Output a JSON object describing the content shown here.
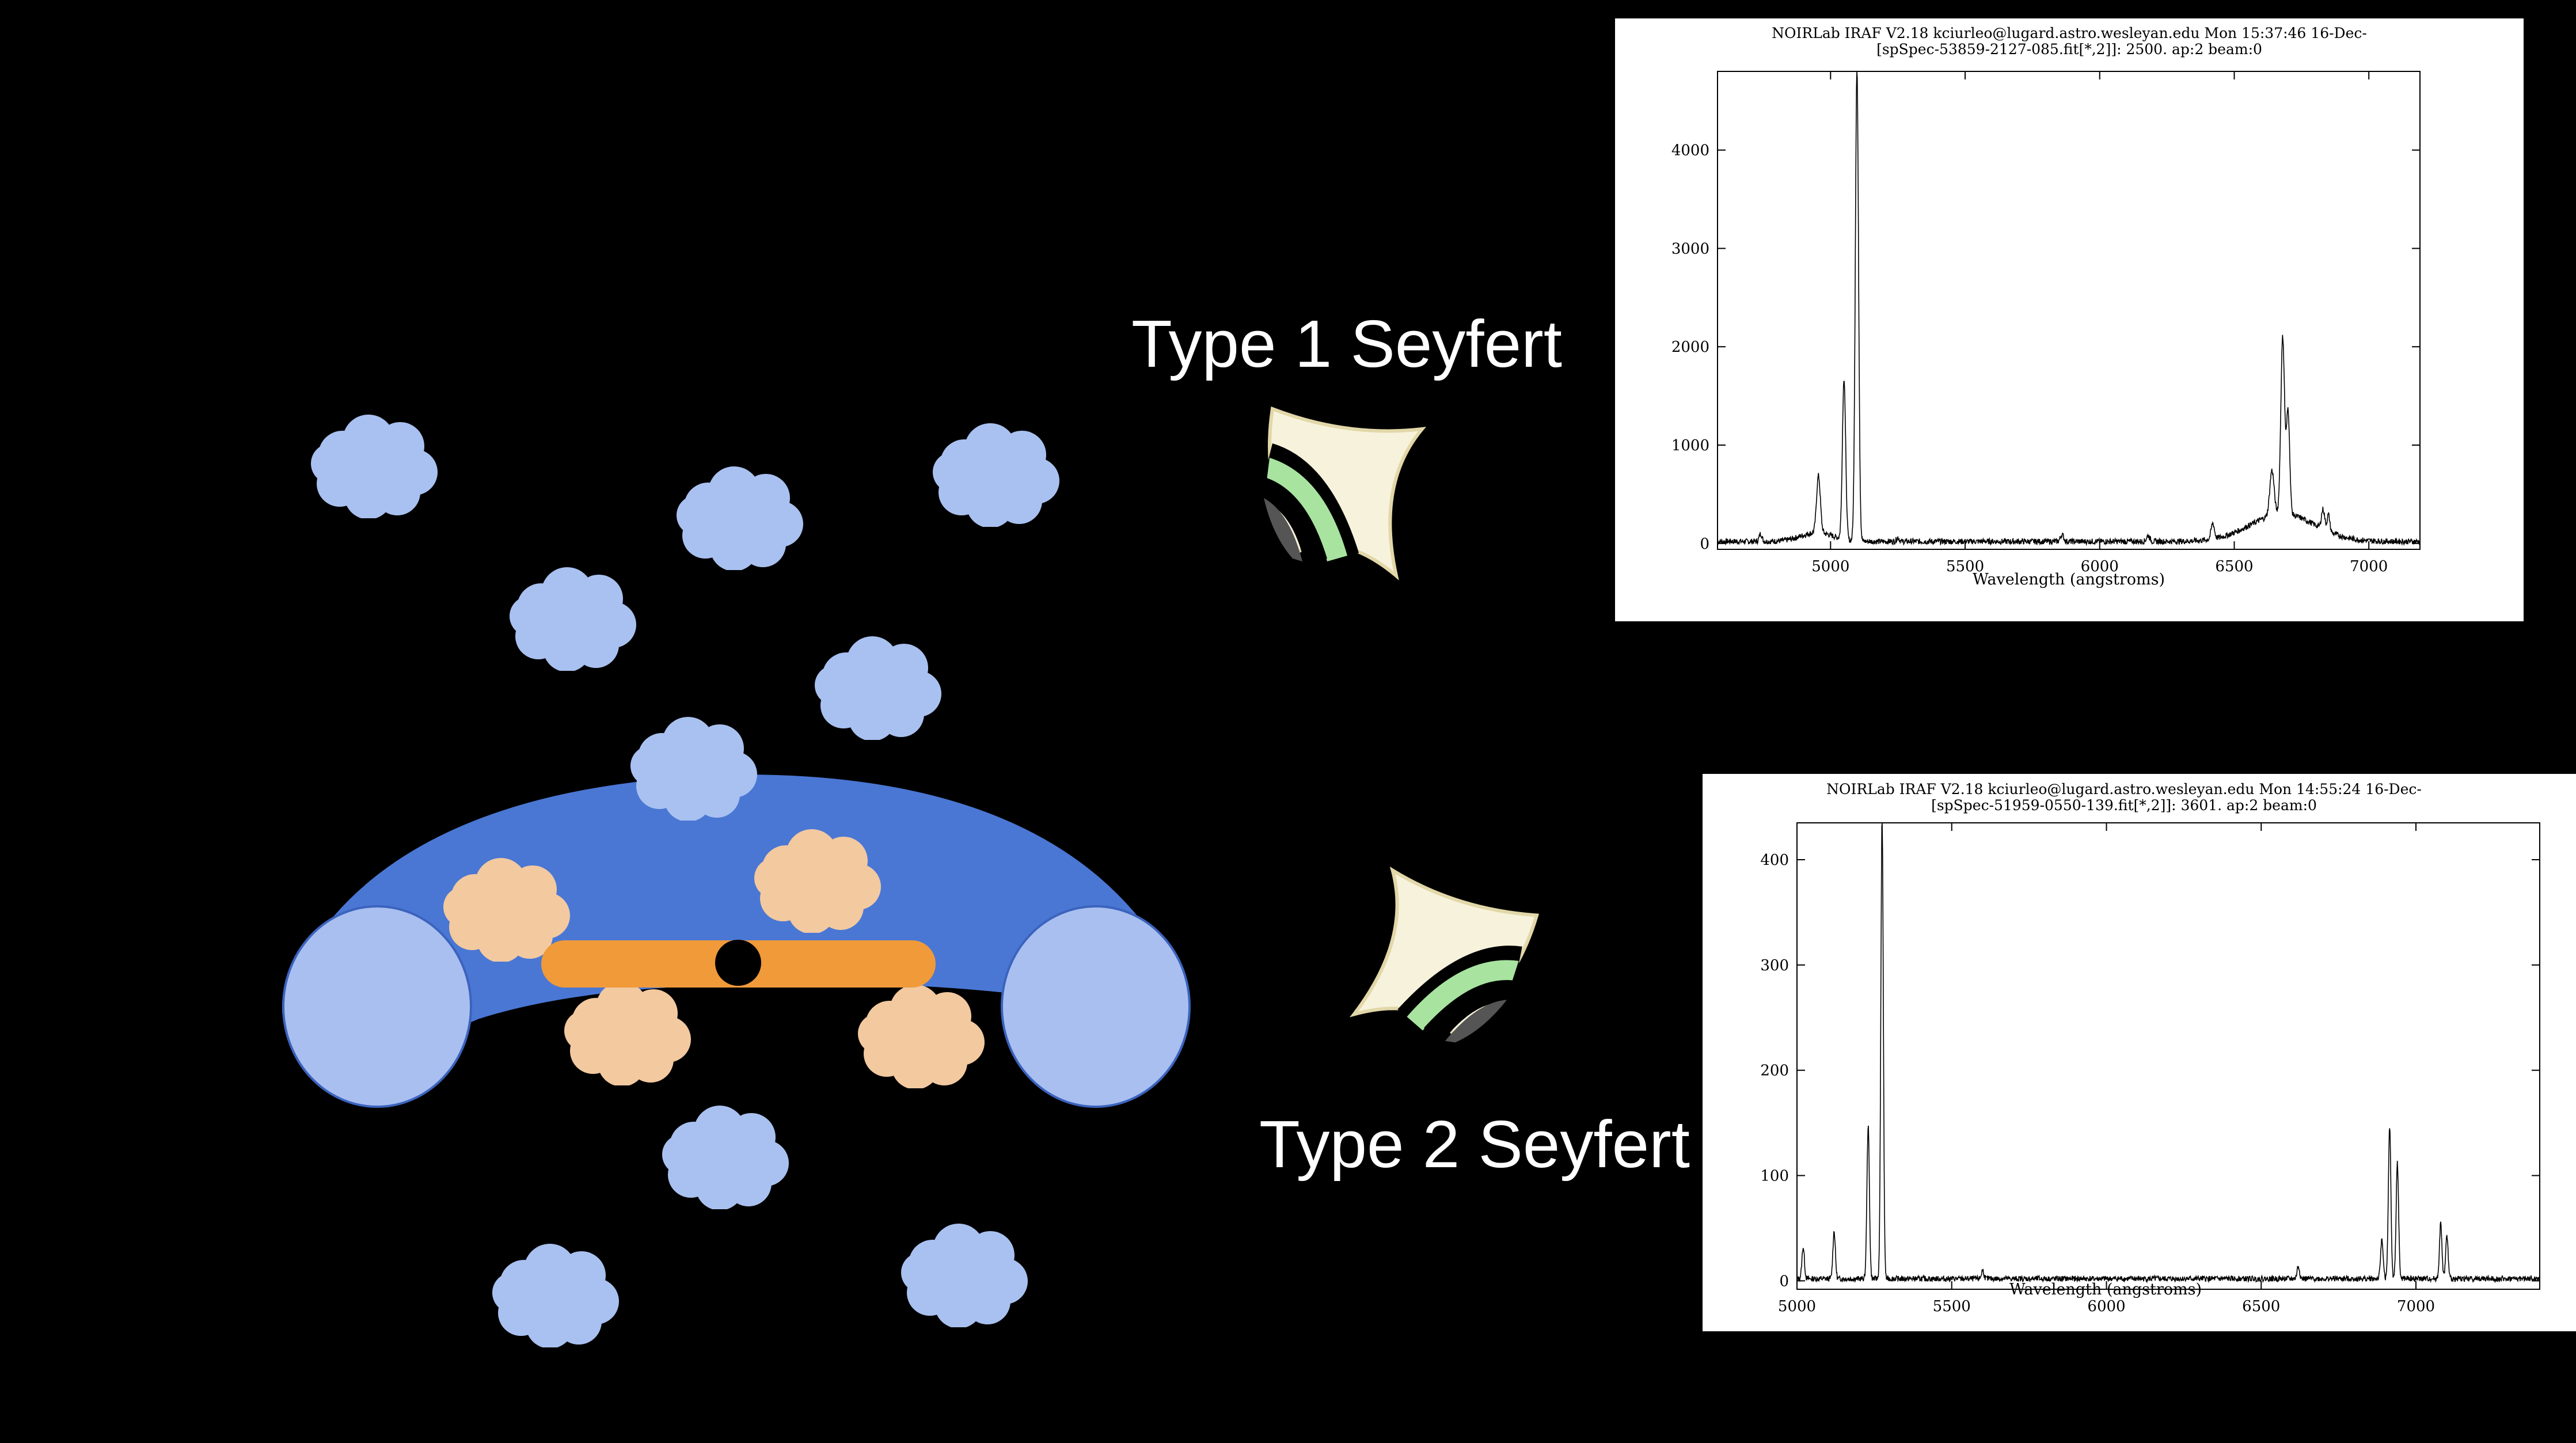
{
  "labels": {
    "type1": "Type 1 Seyfert",
    "type2": "Type 2 Seyfert"
  },
  "colors": {
    "background": "#000000",
    "torus": "#4a77d4",
    "torus_inner": "#a9bff0",
    "cloud_blue": "#a9c1f0",
    "cloud_peach": "#f3c9a0",
    "disk": "#f09a3a",
    "black_hole": "#000000",
    "eye_sclera": "#f7f2dc",
    "eye_iris": "#a8e4a0",
    "eye_pupil": "#555555"
  },
  "icons": [
    "cloud-icon",
    "eye-icon",
    "black-hole-icon"
  ],
  "chart_data": [
    {
      "type": "line",
      "header_line1": "NOIRLab IRAF V2.18 kciurleo@lugard.astro.wesleyan.edu Mon 15:37:46 16-Dec-",
      "header_line2": "[spSpec-53859-2127-085.fit[*,2]]:  2500. ap:2 beam:0",
      "xlabel": "Wavelength (angstroms)",
      "ylabel": "",
      "xlim": [
        4580,
        7190
      ],
      "ylim": [
        -60,
        4800
      ],
      "xticks": [
        5000,
        5500,
        6000,
        6500,
        7000
      ],
      "yticks": [
        0,
        1000,
        2000,
        3000,
        4000
      ],
      "baseline": 20,
      "broad_features": [
        {
          "center": 6680,
          "amp": 280,
          "width": 120
        },
        {
          "center": 4950,
          "amp": 90,
          "width": 60
        }
      ],
      "lines": [
        {
          "center": 4740,
          "amp": 80,
          "width": 5
        },
        {
          "center": 4955,
          "amp": 580,
          "width": 7
        },
        {
          "center": 5050,
          "amp": 1640,
          "width": 6
        },
        {
          "center": 5098,
          "amp": 4800,
          "width": 6
        },
        {
          "center": 5250,
          "amp": 40,
          "width": 5
        },
        {
          "center": 5860,
          "amp": 70,
          "width": 6
        },
        {
          "center": 6180,
          "amp": 60,
          "width": 6
        },
        {
          "center": 6420,
          "amp": 160,
          "width": 6
        },
        {
          "center": 6640,
          "amp": 460,
          "width": 8
        },
        {
          "center": 6680,
          "amp": 1800,
          "width": 7
        },
        {
          "center": 6700,
          "amp": 1050,
          "width": 6
        },
        {
          "center": 6830,
          "amp": 200,
          "width": 6
        },
        {
          "center": 6850,
          "amp": 170,
          "width": 5
        }
      ]
    },
    {
      "type": "line",
      "header_line1": "NOIRLab IRAF V2.18 kciurleo@lugard.astro.wesleyan.edu Mon 14:55:24 16-Dec-",
      "header_line2": "[spSpec-51959-0550-139.fit[*,2]]:  3601. ap:2 beam:0",
      "xlabel": "Wavelength (angstroms)",
      "ylabel": "",
      "xlim": [
        5000,
        7400
      ],
      "ylim": [
        -8,
        435
      ],
      "xticks": [
        5000,
        5500,
        6000,
        6500,
        7000
      ],
      "yticks": [
        0,
        100,
        200,
        300,
        400
      ],
      "baseline": 2,
      "broad_features": [],
      "lines": [
        {
          "center": 5020,
          "amp": 30,
          "width": 4
        },
        {
          "center": 5120,
          "amp": 45,
          "width": 4
        },
        {
          "center": 5230,
          "amp": 145,
          "width": 4
        },
        {
          "center": 5275,
          "amp": 440,
          "width": 4
        },
        {
          "center": 5600,
          "amp": 8,
          "width": 4
        },
        {
          "center": 6620,
          "amp": 12,
          "width": 4
        },
        {
          "center": 6890,
          "amp": 38,
          "width": 4
        },
        {
          "center": 6915,
          "amp": 145,
          "width": 4
        },
        {
          "center": 6940,
          "amp": 110,
          "width": 4
        },
        {
          "center": 7080,
          "amp": 52,
          "width": 4
        },
        {
          "center": 7100,
          "amp": 40,
          "width": 4
        }
      ]
    }
  ]
}
